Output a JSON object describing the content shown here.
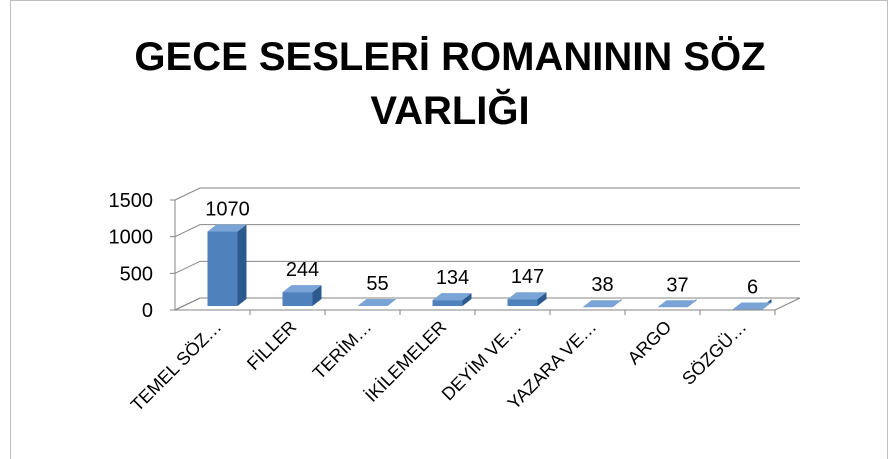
{
  "chart_data": {
    "type": "bar3d",
    "title": "GECE SESLERİ ROMANININ SÖZ VARLIĞI",
    "categories": [
      "TEMEL SÖZ…",
      "FİLLER",
      "TERİM…",
      "İKİLEMELER",
      "DEYİM VE…",
      "YAZARA VE…",
      "ARGO",
      "SÖZGÜ…"
    ],
    "values": [
      1070,
      244,
      55,
      134,
      147,
      38,
      37,
      6
    ],
    "color": "#4f81bd",
    "ylim": [
      0,
      1500
    ],
    "yticks": [
      0,
      500,
      1000,
      1500
    ],
    "grid": true
  }
}
